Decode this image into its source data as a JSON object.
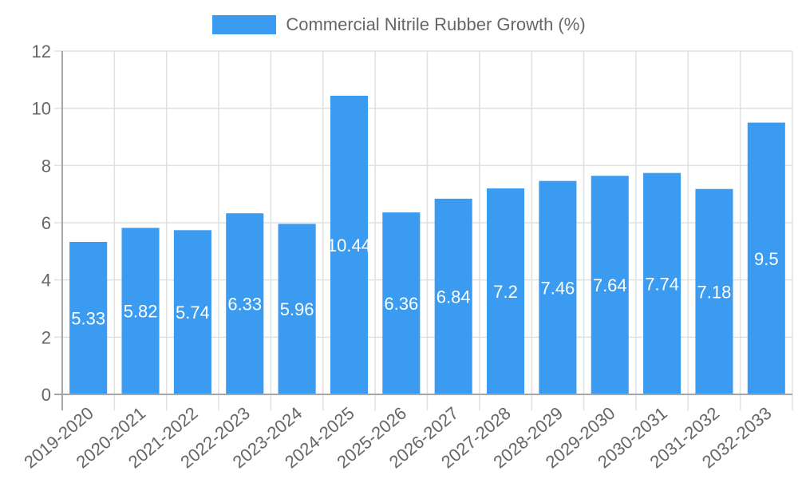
{
  "legend": {
    "label": "Commercial Nitrile Rubber Growth (%)",
    "color": "#3a9bf0"
  },
  "colors": {
    "bar": "#3a9bf0",
    "grid": "#e0e0e0",
    "axis": "#a6a6a6",
    "tick_text": "#666666",
    "value_text": "#ffffff"
  },
  "chart_data": {
    "type": "bar",
    "title": "",
    "xlabel": "",
    "ylabel": "",
    "ylim": [
      0,
      12
    ],
    "yticks": [
      0,
      2,
      4,
      6,
      8,
      10,
      12
    ],
    "grid": true,
    "legend_position": "top",
    "categories": [
      "2019-2020",
      "2020-2021",
      "2021-2022",
      "2022-2023",
      "2023-2024",
      "2024-2025",
      "2025-2026",
      "2026-2027",
      "2027-2028",
      "2028-2029",
      "2029-2030",
      "2030-2031",
      "2031-2032",
      "2032-2033"
    ],
    "series": [
      {
        "name": "Commercial Nitrile Rubber Growth (%)",
        "values": [
          5.33,
          5.82,
          5.74,
          6.33,
          5.96,
          10.44,
          6.36,
          6.84,
          7.2,
          7.46,
          7.64,
          7.74,
          7.18,
          9.5
        ]
      }
    ]
  }
}
